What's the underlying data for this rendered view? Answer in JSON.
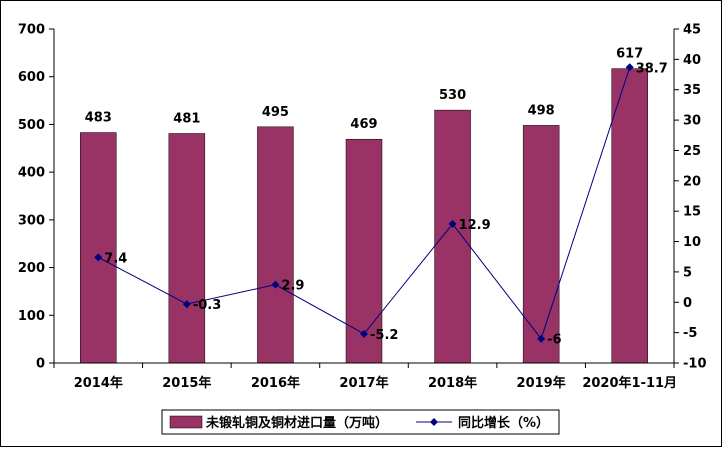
{
  "chart_data": {
    "type": "bar",
    "categories": [
      "2014年",
      "2015年",
      "2016年",
      "2017年",
      "2018年",
      "2019年",
      "2020年1-11月"
    ],
    "series": [
      {
        "name": "未锻轧铜及铜材进口量（万吨）",
        "type": "bar",
        "axis": "left",
        "values": [
          483,
          481,
          495,
          469,
          530,
          498,
          617
        ],
        "labels": [
          "483",
          "481",
          "495",
          "469",
          "530",
          "498",
          "617"
        ],
        "color": "#993366"
      },
      {
        "name": "同比增长（%）",
        "type": "line",
        "axis": "right",
        "values": [
          7.4,
          -0.3,
          2.9,
          -5.2,
          12.9,
          -6,
          38.7
        ],
        "labels": [
          "7.4",
          "-0.3",
          "2.9",
          "-5.2",
          "12.9",
          "-6",
          "38.7"
        ],
        "color": "#000080"
      }
    ],
    "y_left": {
      "range": [
        0,
        700
      ],
      "ticks": [
        "0",
        "100",
        "200",
        "300",
        "400",
        "500",
        "600",
        "700"
      ]
    },
    "y_right": {
      "range": [
        -10,
        45
      ],
      "ticks": [
        "-10",
        "-5",
        "0",
        "5",
        "10",
        "15",
        "20",
        "25",
        "30",
        "35",
        "40",
        "45"
      ]
    },
    "grid": false,
    "legend": "bottom"
  }
}
